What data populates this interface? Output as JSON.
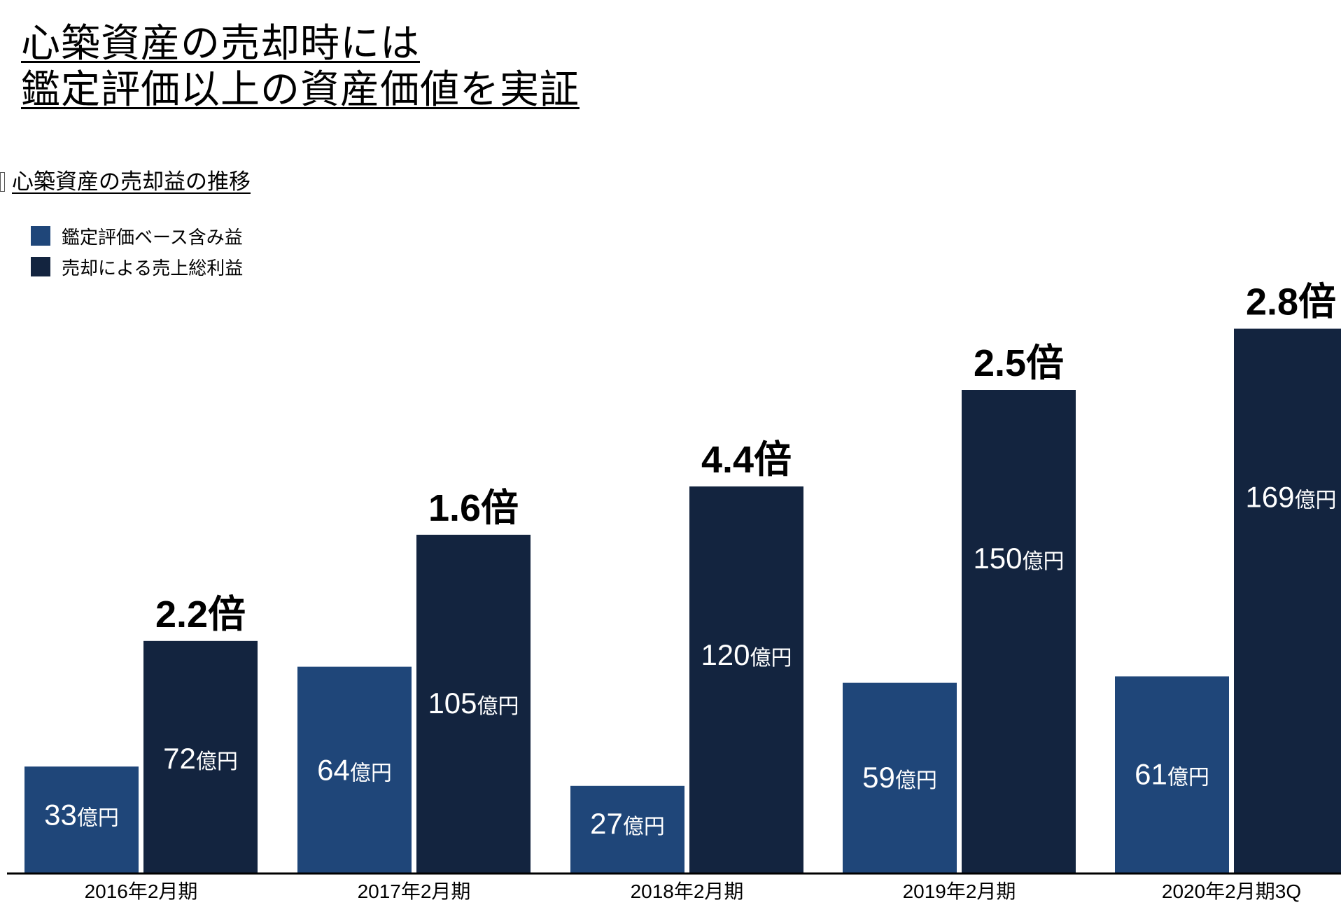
{
  "header": {
    "title_line1": "心築資産の売却時には",
    "title_line2": "鑑定評価以上の資産価値を実証"
  },
  "subtitle": "心築資産の売却益の推移",
  "legend": [
    {
      "label": "鑑定評価ベース含み益",
      "color": "#1f4679"
    },
    {
      "label": "売却による売上総利益",
      "color": "#13243f"
    }
  ],
  "colors": {
    "appraisal_bar": "#1f4679",
    "gross_profit_bar": "#13243f",
    "axis_line": "#000000"
  },
  "chart_data": {
    "type": "bar",
    "unit": "億円",
    "categories": [
      "2016年2月期",
      "2017年2月期",
      "2018年2月期",
      "2019年2月期",
      "2020年2月期3Q"
    ],
    "series": [
      {
        "name": "鑑定評価ベース含み益",
        "values": [
          33,
          64,
          27,
          59,
          61
        ]
      },
      {
        "name": "売却による売上総利益",
        "values": [
          72,
          105,
          120,
          150,
          169
        ]
      }
    ],
    "multipliers": [
      "2.2倍",
      "1.6倍",
      "4.4倍",
      "2.5倍",
      "2.8倍"
    ],
    "ylim": [
      0,
      170
    ],
    "grid": false,
    "legend_position": "top-left"
  }
}
